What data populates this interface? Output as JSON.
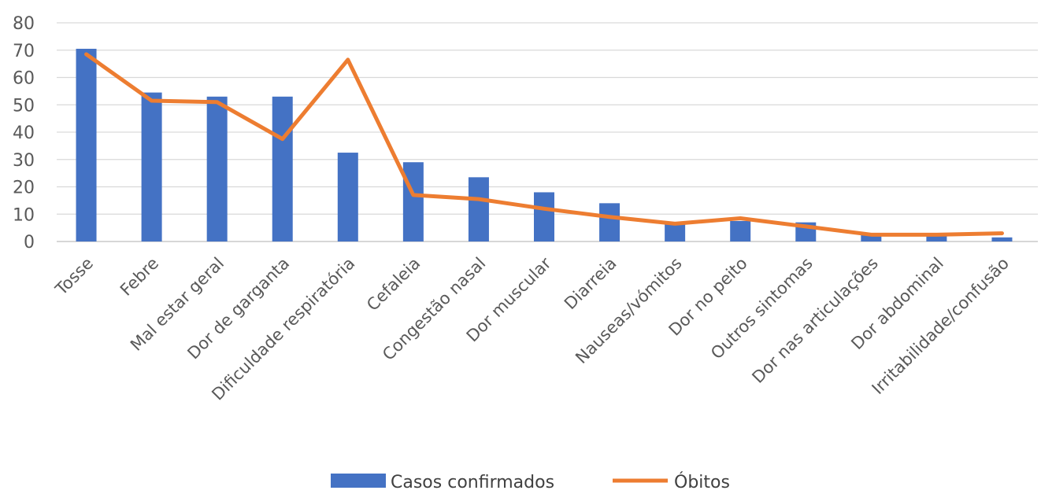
{
  "chart_data": {
    "type": "bar",
    "title": "",
    "xlabel": "",
    "ylabel": "",
    "ylim": [
      0,
      80
    ],
    "yticks": [
      0,
      10,
      20,
      30,
      40,
      50,
      60,
      70,
      80
    ],
    "grid": true,
    "legend_position": "bottom",
    "categories": [
      "Tosse",
      "Febre",
      "Mal estar geral",
      "Dor de garganta",
      "Dificuldade respiratória",
      "Cefaleia",
      "Congestão nasal",
      "Dor muscular",
      "Diarreia",
      "Nauseas/vómitos",
      "Dor no peito",
      "Outros sintomas",
      "Dor nas articulações",
      "Dor abdominal",
      "Irritabilidade/confusão"
    ],
    "series": [
      {
        "name": "Casos confirmados",
        "type": "bar",
        "color": "#4472C4",
        "values": [
          70.5,
          54.5,
          53,
          53,
          32.5,
          29,
          23.5,
          18,
          14,
          6.5,
          7.5,
          7,
          2.5,
          2,
          1.5
        ]
      },
      {
        "name": "Óbitos",
        "type": "line",
        "color": "#ED7D31",
        "values": [
          68.5,
          51.5,
          51,
          37.5,
          66.5,
          17,
          15.5,
          12,
          9,
          6.5,
          8.5,
          5.5,
          2.5,
          2.5,
          3
        ]
      }
    ]
  }
}
